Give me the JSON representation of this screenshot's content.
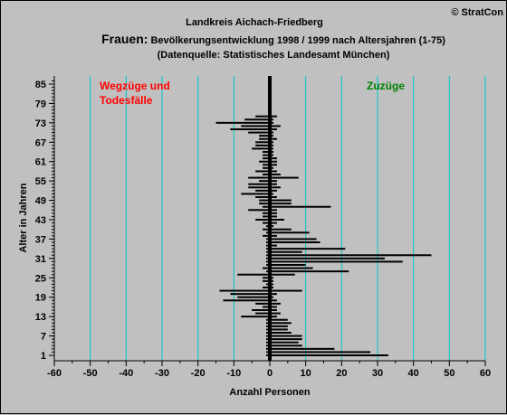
{
  "copyright": "© StratCon",
  "title_line1": "Landkreis Aichach-Friedberg",
  "title_line2_prefix": "Frauen:",
  "title_line2_rest": " Bevölkerungsentwicklung 1998 / 1999  nach Altersjahren (1-75)",
  "title_line3": "(Datenquelle: Statistisches Landesamt München)",
  "annotation_left_line1": "Wegzüge und",
  "annotation_left_line2": "Todesfälle",
  "annotation_right": "Zuzüge",
  "colors": {
    "background": "#c0c0c0",
    "gridline": "#00c8c8",
    "bars": "#000000",
    "annotation_left": "#ff0000",
    "annotation_right": "#008000"
  },
  "chart_data": {
    "type": "bar",
    "orientation": "horizontal",
    "title": "Landkreis Aichach-Friedberg",
    "xlabel": "Anzahl Personen",
    "ylabel": "Alter in Jahren",
    "xlim": [
      -60,
      60
    ],
    "ylim": [
      1,
      86
    ],
    "x_ticks": [
      -60,
      -50,
      -40,
      -30,
      -20,
      -10,
      0,
      10,
      20,
      30,
      40,
      50,
      60
    ],
    "y_ticks": [
      1,
      7,
      13,
      19,
      25,
      31,
      37,
      43,
      49,
      55,
      61,
      67,
      73,
      79,
      85
    ],
    "grid": "vertical",
    "series": [
      {
        "name": "Wegzüge und Todesfälle",
        "ages": [
          1,
          2,
          3,
          4,
          5,
          6,
          7,
          8,
          9,
          10,
          11,
          12,
          13,
          14,
          15,
          16,
          17,
          18,
          19,
          20,
          21,
          22,
          23,
          24,
          25,
          26,
          27,
          28,
          29,
          30,
          31,
          32,
          33,
          34,
          35,
          36,
          37,
          38,
          39,
          40,
          41,
          42,
          43,
          44,
          45,
          46,
          47,
          48,
          49,
          50,
          51,
          52,
          53,
          54,
          55,
          56,
          57,
          58,
          59,
          60,
          61,
          62,
          63,
          64,
          65,
          66,
          67,
          68,
          69,
          70,
          71,
          72,
          73,
          74,
          75
        ],
        "values": [
          -1,
          -1,
          -1,
          -1,
          -1,
          -1,
          -1,
          -1,
          -1,
          -1,
          -1,
          -1,
          -8,
          -4,
          -5,
          -2,
          -4,
          -13,
          -9,
          -11,
          -14,
          -2,
          -1,
          -2,
          -2,
          -9,
          -1,
          -2,
          -1,
          -1,
          -1,
          -1,
          -1,
          -1,
          -1,
          -1,
          -1,
          -2,
          -1,
          -2,
          -1,
          -2,
          -4,
          -2,
          -2,
          -6,
          -2,
          -3,
          -3,
          -4,
          -8,
          -4,
          -6,
          -6,
          -3,
          -6,
          -2,
          -4,
          -2,
          -2,
          -3,
          -2,
          -2,
          -2,
          -5,
          -4,
          -4,
          -3,
          -3,
          -6,
          -11,
          -8,
          -15,
          -7,
          -4
        ]
      },
      {
        "name": "Zuzüge",
        "ages": [
          1,
          2,
          3,
          4,
          5,
          6,
          7,
          8,
          9,
          10,
          11,
          12,
          13,
          14,
          15,
          16,
          17,
          18,
          19,
          20,
          21,
          22,
          23,
          24,
          25,
          26,
          27,
          28,
          29,
          30,
          31,
          32,
          33,
          34,
          35,
          36,
          37,
          38,
          39,
          40,
          41,
          42,
          43,
          44,
          45,
          46,
          47,
          48,
          49,
          50,
          51,
          52,
          53,
          54,
          55,
          56,
          57,
          58,
          59,
          60,
          61,
          62,
          63,
          64,
          65,
          66,
          67,
          68,
          69,
          70,
          71,
          72,
          73,
          74,
          75
        ],
        "values": [
          33,
          28,
          18,
          9,
          8,
          9,
          9,
          6,
          5,
          5,
          6,
          5,
          2,
          3,
          2,
          2,
          3,
          2,
          1,
          2,
          9,
          1,
          1,
          1,
          1,
          7,
          22,
          12,
          10,
          37,
          32,
          45,
          9,
          21,
          2,
          14,
          13,
          2,
          11,
          6,
          1,
          2,
          4,
          2,
          2,
          2,
          17,
          6,
          6,
          2,
          1,
          2,
          3,
          2,
          2,
          8,
          3,
          2,
          1,
          2,
          2,
          2,
          1,
          1,
          1,
          1,
          1,
          2,
          1,
          1,
          2,
          3,
          1,
          1,
          2
        ]
      }
    ]
  }
}
